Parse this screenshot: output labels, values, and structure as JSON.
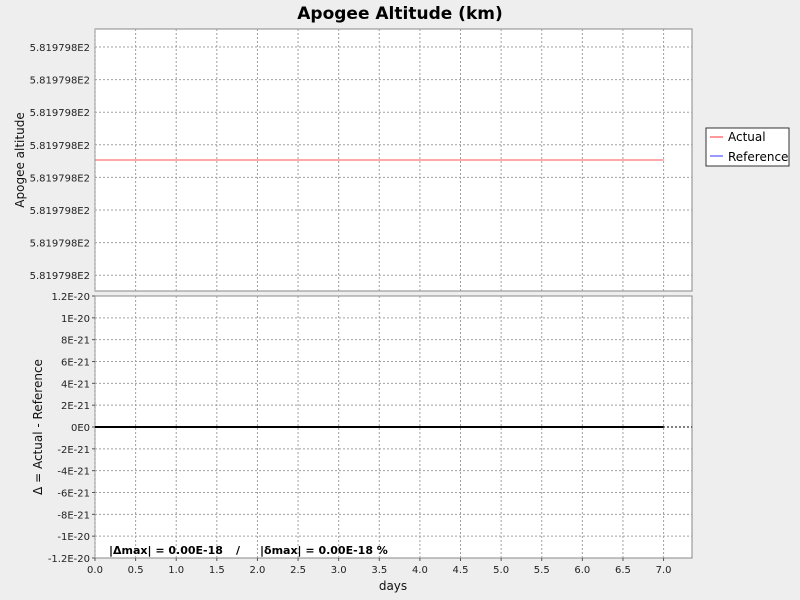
{
  "chart_data": {
    "type": "line",
    "title": "Apogee Altitude (km)",
    "xlabel": "days",
    "xlim": [
      0,
      7.35
    ],
    "x_ticks": [
      "0.0",
      "0.5",
      "1.0",
      "1.5",
      "2.0",
      "2.5",
      "3.0",
      "3.5",
      "4.0",
      "4.5",
      "5.0",
      "5.5",
      "6.0",
      "6.5",
      "7.0"
    ],
    "x_tick_values": [
      0,
      0.5,
      1,
      1.5,
      2,
      2.5,
      3,
      3.5,
      4,
      4.5,
      5,
      5.5,
      6,
      6.5,
      7
    ],
    "grid": true,
    "legend_position": "right",
    "panels": [
      {
        "name": "top",
        "ylabel": "Apogee altitude",
        "y_ticks": [
          "5.819798E2",
          "5.819798E2",
          "5.819798E2",
          "5.819798E2",
          "5.819798E2",
          "5.819798E2",
          "5.819798E2",
          "5.819798E2"
        ],
        "series": [
          {
            "name": "Actual",
            "color": "#ff5555",
            "x": [
              0,
              7.0
            ],
            "y_level": 0.5
          },
          {
            "name": "Reference",
            "color": "#5555ff",
            "x": [
              0,
              7.0
            ],
            "y_level": 0.5
          }
        ]
      },
      {
        "name": "bottom",
        "ylabel": "Δ = Actual - Reference",
        "ylim": [
          -1.2e-20,
          1.2e-20
        ],
        "y_ticks": [
          "1.2E-20",
          "1E-20",
          "8E-21",
          "6E-21",
          "4E-21",
          "2E-21",
          "0E0",
          "-2E-21",
          "-4E-21",
          "-6E-21",
          "-8E-21",
          "-1E-20",
          "-1.2E-20"
        ],
        "y_tick_values": [
          1.2e-20,
          1e-20,
          8e-21,
          6e-21,
          4e-21,
          2e-21,
          0,
          -2e-21,
          -4e-21,
          -6e-21,
          -8e-21,
          -1e-20,
          -1.2e-20
        ],
        "series": [
          {
            "name": "Δ",
            "color": "#000000",
            "x": [
              0,
              7.0
            ],
            "y": [
              0,
              0
            ]
          }
        ],
        "reference_line": {
          "y": 0,
          "style": "dotted"
        },
        "annotation": {
          "delta_max": "|Δmax| = 0.00E-18",
          "separator": "/",
          "rel_delta_max": "|δmax| = 0.00E-18 %"
        }
      }
    ],
    "legend": [
      "Actual",
      "Reference"
    ]
  }
}
